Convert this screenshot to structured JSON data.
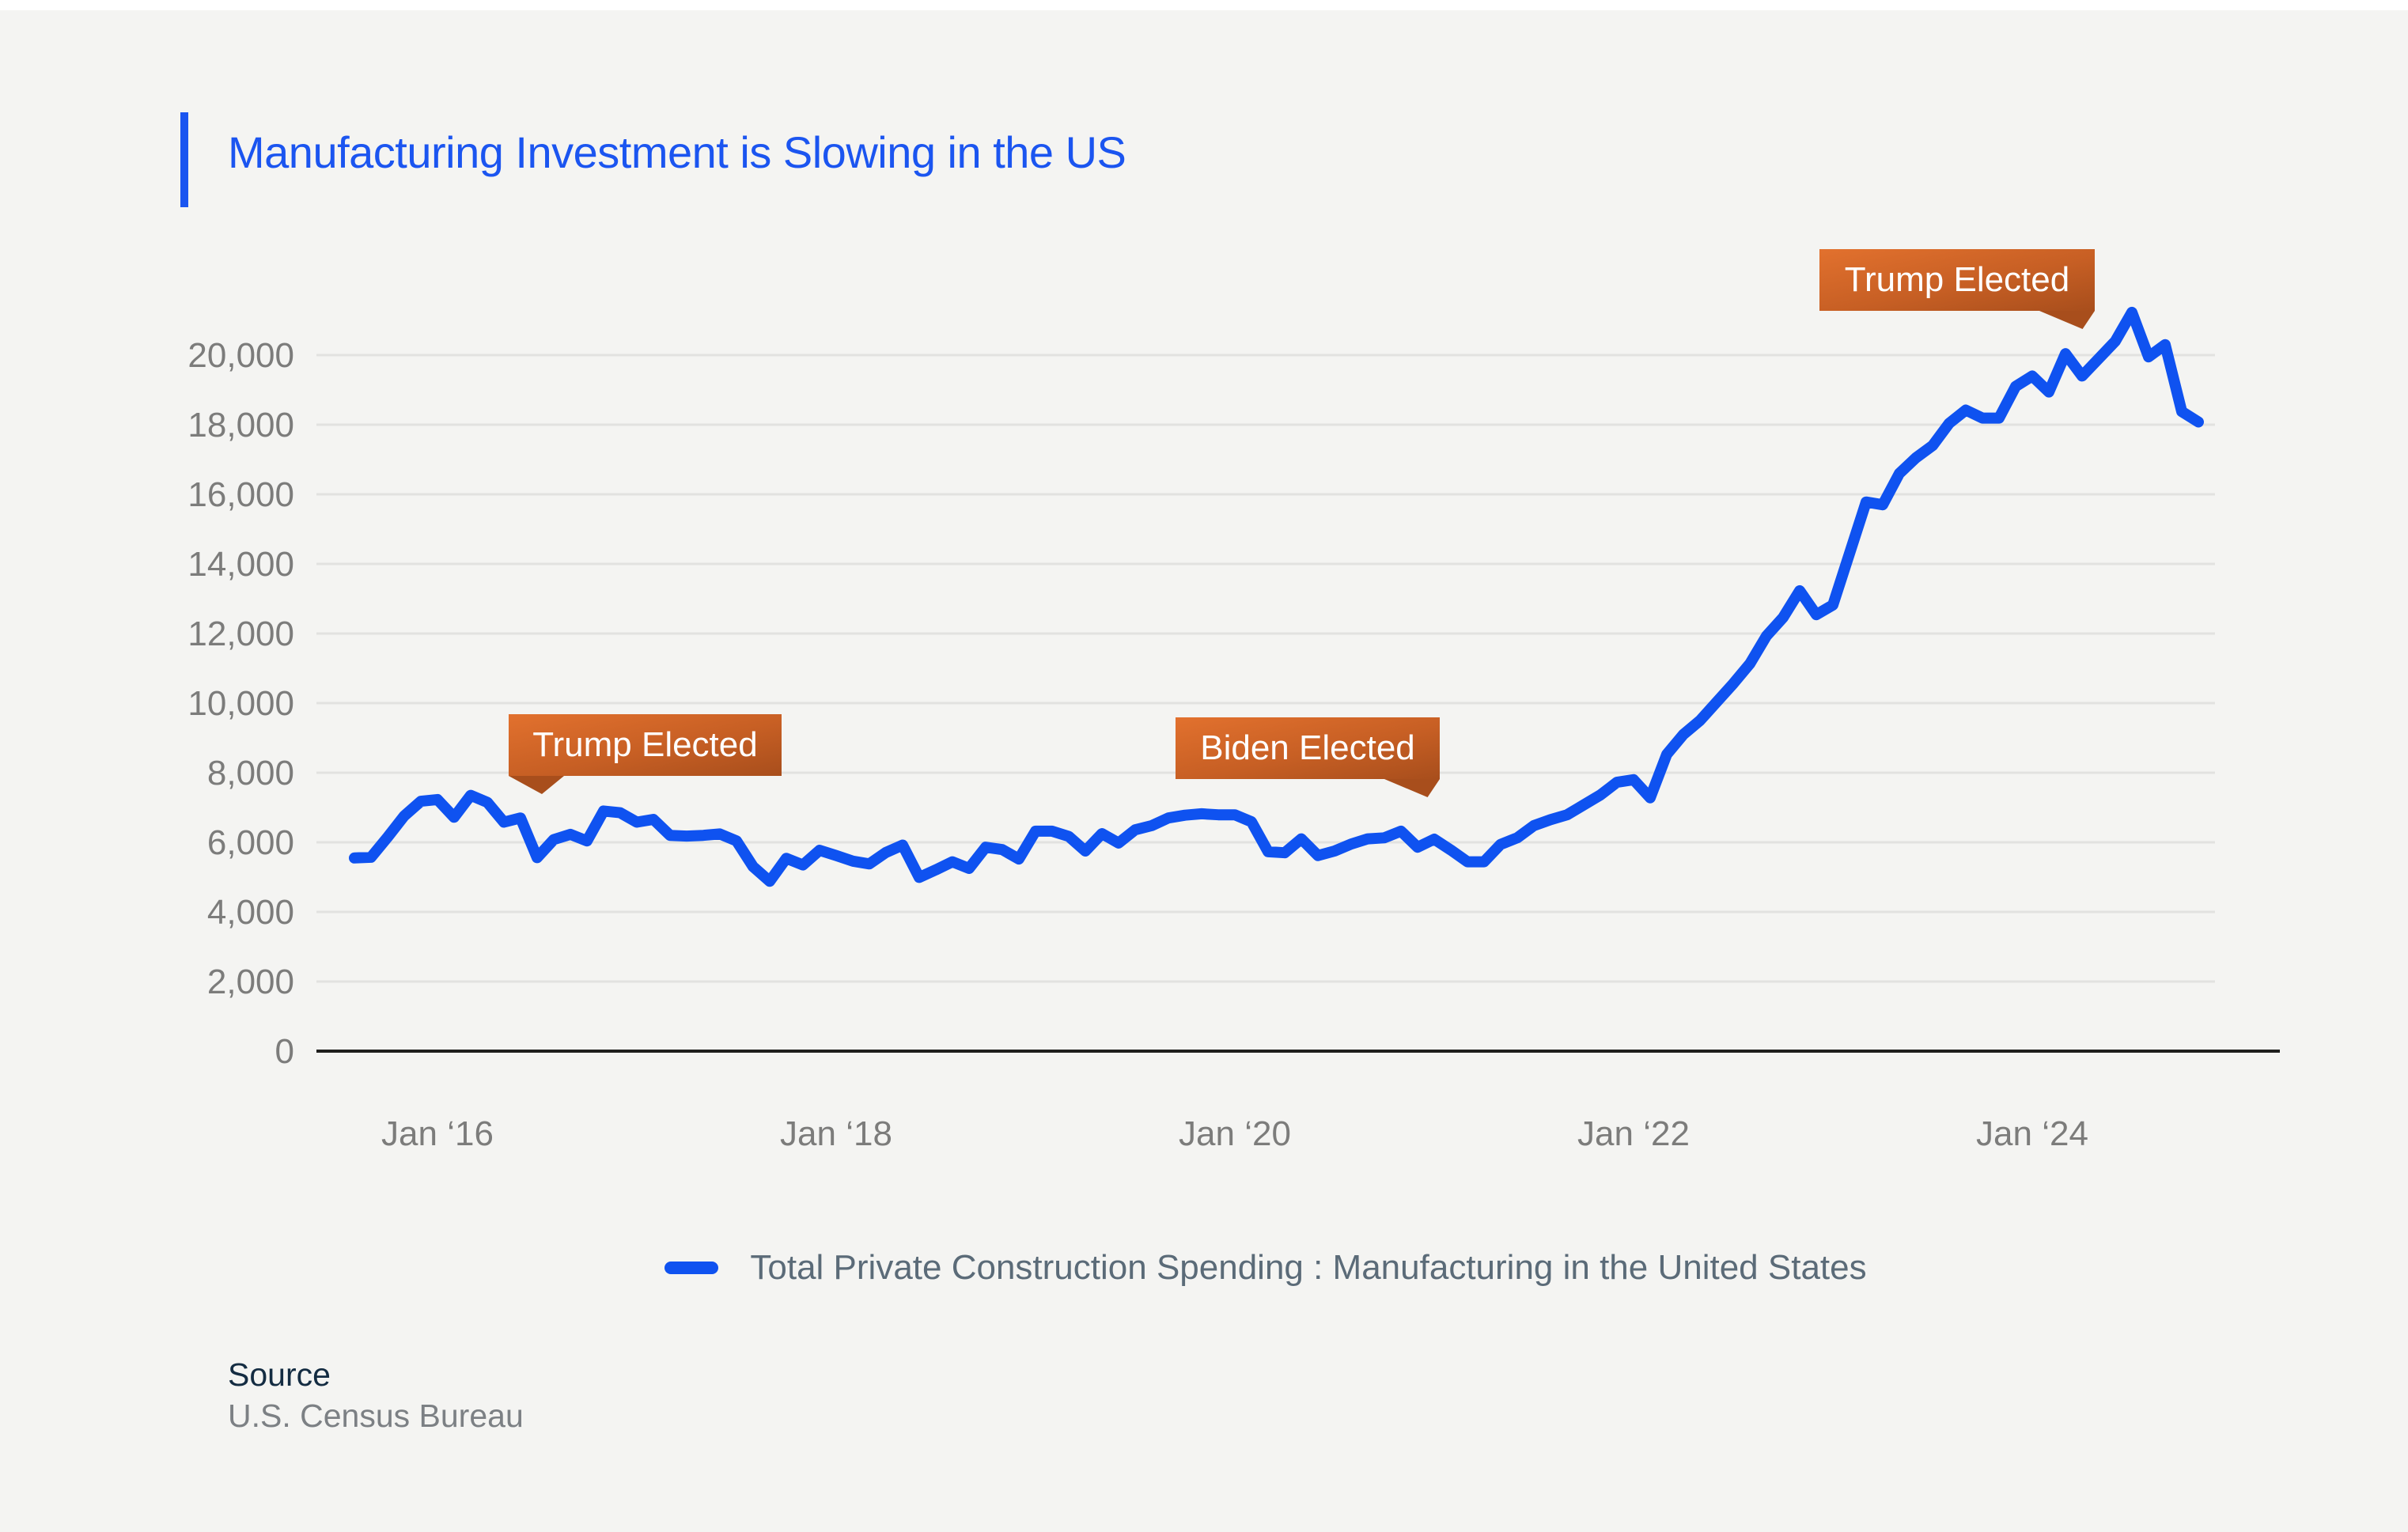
{
  "page": {
    "background_color": "#f4f4f2",
    "top_strip_color": "#ffffff"
  },
  "header": {
    "title": "Manufacturing Investment is Slowing in the US",
    "accent_color": "#1b55f0"
  },
  "legend": {
    "label": "Total Private Construction Spending : Manufacturing in the United States",
    "swatch_color": "#0f52f0"
  },
  "source": {
    "heading": "Source",
    "value": "U.S. Census Bureau"
  },
  "chart_data": {
    "type": "line",
    "title": "Manufacturing Investment is Slowing in the US",
    "line_color": "#0f52f0",
    "grid": true,
    "legend_position": "bottom-center",
    "x_start_month": "2015-08",
    "x_tick_labels": [
      "Jan ‘16",
      "Jan ‘18",
      "Jan ‘20",
      "Jan ‘22",
      "Jan ‘24"
    ],
    "x_tick_months": [
      "2016-01",
      "2018-01",
      "2020-01",
      "2022-01",
      "2024-01"
    ],
    "y_ticks": [
      0,
      2000,
      4000,
      6000,
      8000,
      10000,
      12000,
      14000,
      16000,
      18000,
      20000
    ],
    "y_tick_labels": [
      "0",
      "2,000",
      "4,000",
      "6,000",
      "8,000",
      "10,000",
      "12,000",
      "14,000",
      "16,000",
      "18,000",
      "20,000"
    ],
    "ylim": [
      0,
      22000
    ],
    "series": [
      {
        "name": "Total Private Construction Spending : Manufacturing in the United States",
        "values": [
          5550,
          5570,
          6150,
          6760,
          7180,
          7230,
          6720,
          7350,
          7150,
          6580,
          6700,
          5560,
          6080,
          6230,
          6040,
          6900,
          6850,
          6580,
          6660,
          6200,
          6180,
          6200,
          6240,
          6040,
          5300,
          4880,
          5540,
          5350,
          5770,
          5620,
          5460,
          5380,
          5710,
          5920,
          4990,
          5210,
          5440,
          5250,
          5860,
          5790,
          5520,
          6320,
          6320,
          6170,
          5750,
          6250,
          5980,
          6360,
          6480,
          6700,
          6780,
          6820,
          6790,
          6790,
          6590,
          5730,
          5700,
          6100,
          5620,
          5750,
          5950,
          6100,
          6130,
          6320,
          5860,
          6090,
          5780,
          5440,
          5440,
          5940,
          6130,
          6480,
          6650,
          6790,
          7075,
          7360,
          7725,
          7800,
          7280,
          8530,
          9100,
          9500,
          10030,
          10560,
          11130,
          11930,
          12460,
          13230,
          12540,
          12820,
          14300,
          15780,
          15700,
          16600,
          17050,
          17400,
          18040,
          18420,
          18190,
          18190,
          19100,
          19400,
          18940,
          20040,
          19400,
          19900,
          20400,
          21230,
          19950,
          20300,
          18380,
          18080
        ]
      }
    ],
    "annotations": [
      {
        "label": "Trump Elected"
      },
      {
        "label": "Biden Elected"
      },
      {
        "label": "Trump Elected"
      }
    ]
  }
}
